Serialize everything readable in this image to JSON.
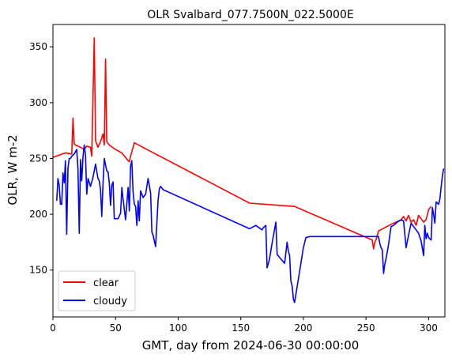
{
  "chart_data": {
    "type": "line",
    "title": "OLR Svalbard_077.7500N_022.5000E",
    "xlabel": "GMT, day from 2024-06-30 00:00:00",
    "ylabel": "OLR, W m-2",
    "xlim": [
      0,
      313
    ],
    "ylim": [
      108,
      370
    ],
    "xticks": [
      0,
      50,
      100,
      150,
      200,
      250,
      300
    ],
    "yticks": [
      150,
      200,
      250,
      300,
      350
    ],
    "grid": false,
    "legend_position": "lower-left",
    "series": [
      {
        "name": "clear",
        "color": "#ff0000",
        "x": [
          0,
          10,
          15,
          16,
          17,
          18,
          22,
          25,
          27,
          30,
          31,
          33,
          34,
          36,
          38,
          40,
          41,
          42,
          43,
          45,
          50,
          55,
          60,
          61,
          62,
          65,
          157,
          193,
          255,
          256,
          257,
          258,
          260,
          270,
          278,
          280,
          282,
          284,
          286,
          288,
          290,
          292,
          294,
          296,
          298,
          300,
          302
        ],
        "y": [
          251,
          255,
          254,
          286,
          263,
          262,
          260,
          258,
          261,
          260,
          252,
          358,
          266,
          260,
          265,
          272,
          262,
          339,
          265,
          262,
          258,
          255,
          248,
          247,
          252,
          264,
          210,
          207,
          177,
          169,
          175,
          177,
          185,
          191,
          195,
          198,
          194,
          199,
          193,
          195,
          190,
          199,
          196,
          193,
          195,
          204,
          207
        ]
      },
      {
        "name": "cloudy",
        "color": "#0000ff",
        "x": [
          3,
          4,
          5,
          6,
          7,
          8,
          9,
          10,
          11,
          12,
          13,
          14,
          15,
          17,
          19,
          20,
          21,
          22,
          23,
          24,
          25,
          26,
          27,
          28,
          30,
          32,
          34,
          36,
          37,
          38,
          39,
          40,
          41,
          42,
          43,
          44,
          45,
          46,
          47,
          48,
          49,
          50,
          52,
          54,
          55,
          56,
          58,
          60,
          61,
          62,
          63,
          64,
          65,
          66,
          67,
          68,
          69,
          70,
          72,
          74,
          76,
          78,
          79,
          80,
          82,
          84,
          85,
          86,
          88,
          157,
          162,
          167,
          168,
          170,
          171,
          172,
          173,
          175,
          178,
          179,
          182,
          185,
          187,
          188,
          189,
          190,
          191,
          192,
          193,
          195,
          197,
          200,
          202,
          205,
          210,
          220,
          230,
          240,
          258,
          260,
          261,
          262,
          263,
          264,
          265,
          266,
          268,
          270,
          272,
          275,
          278,
          280,
          282,
          284,
          286,
          288,
          290,
          292,
          294,
          296,
          297,
          298,
          299,
          300,
          302,
          303,
          304,
          305,
          306,
          307,
          308,
          309,
          310,
          311,
          312
        ],
        "y": [
          212,
          232,
          226,
          209,
          209,
          237,
          228,
          248,
          182,
          241,
          250,
          250,
          252,
          254,
          258,
          240,
          183,
          249,
          230,
          251,
          262,
          253,
          218,
          232,
          225,
          233,
          245,
          232,
          230,
          222,
          198,
          228,
          250,
          244,
          239,
          238,
          228,
          208,
          226,
          229,
          196,
          196,
          196,
          201,
          224,
          214,
          195,
          224,
          203,
          243,
          248,
          220,
          209,
          207,
          190,
          212,
          194,
          221,
          215,
          218,
          232,
          219,
          184,
          181,
          171,
          213,
          223,
          225,
          222,
          187,
          190,
          186,
          188,
          190,
          152,
          156,
          160,
          174,
          193,
          164,
          160,
          156,
          175,
          167,
          163,
          140,
          136,
          124,
          121,
          135,
          149,
          170,
          179,
          180,
          180,
          180,
          180,
          180,
          180,
          180,
          174,
          170,
          168,
          147,
          155,
          160,
          173,
          189,
          190,
          193,
          195,
          194,
          170,
          181,
          192,
          189,
          186,
          183,
          176,
          163,
          190,
          178,
          183,
          179,
          177,
          206,
          200,
          192,
          211,
          210,
          209,
          214,
          224,
          234,
          241
        ]
      }
    ]
  }
}
